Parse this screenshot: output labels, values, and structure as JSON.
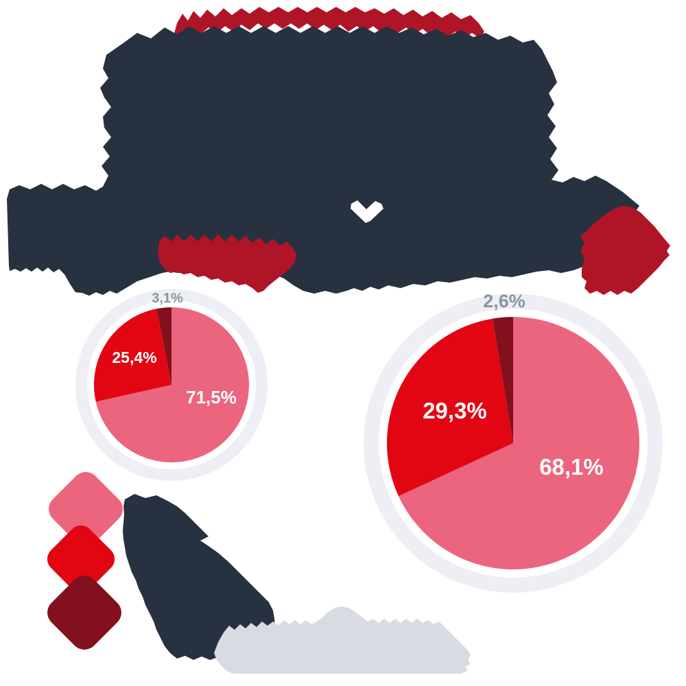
{
  "palette": {
    "background": "#ffffff",
    "navy": "#273140",
    "crimson": "#b01527",
    "pink": "#ec657f",
    "red": "#e20613",
    "dark_red": "#82101d",
    "ring_gray": "#edeff4",
    "white": "#ffffff",
    "outside_label_gray": "#8b95a2",
    "footer_gray": "#d8dce2"
  },
  "chart_data": [
    {
      "type": "pie",
      "start": "top",
      "direction": "clockwise",
      "slices": [
        {
          "label": "71,5%",
          "value": 71.5,
          "color": "#ec657f"
        },
        {
          "label": "25,4%",
          "value": 25.4,
          "color": "#e20613"
        },
        {
          "label": "3,1%",
          "value": 3.1,
          "color": "#82101d"
        }
      ],
      "outside_label": "3,1%",
      "inside_labels": [
        "71,5%",
        "25,4%"
      ]
    },
    {
      "type": "pie",
      "start": "top",
      "direction": "clockwise",
      "slices": [
        {
          "label": "68,1%",
          "value": 68.1,
          "color": "#ec657f"
        },
        {
          "label": "29,3%",
          "value": 29.3,
          "color": "#e20613"
        },
        {
          "label": "2,6%",
          "value": 2.6,
          "color": "#82101d"
        }
      ],
      "outside_label": "2,6%",
      "inside_labels": [
        "68,1%",
        "29,3%"
      ]
    }
  ],
  "legend": {
    "swatches": [
      {
        "color": "#ec657f"
      },
      {
        "color": "#e20613"
      },
      {
        "color": "#82101d"
      }
    ]
  }
}
